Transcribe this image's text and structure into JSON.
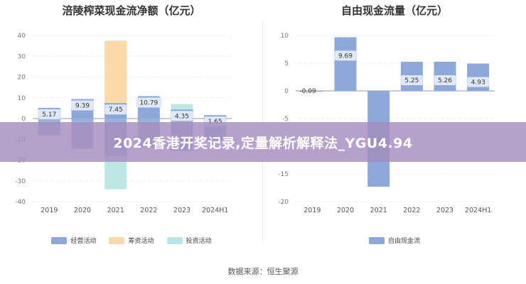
{
  "chart_data": [
    {
      "type": "bar",
      "title": "涪陵榨菜现金流净额（亿元）",
      "categories": [
        "2019",
        "2020",
        "2021",
        "2022",
        "2023",
        "2024H1"
      ],
      "ylim": [
        -40,
        40
      ],
      "yticks": [
        -40,
        -30,
        -20,
        -10,
        0,
        10,
        20,
        30,
        40
      ],
      "grid": true,
      "legend_position": "bottom",
      "series": [
        {
          "name": "经营活动",
          "color": "#8da8d8",
          "values": [
            5.17,
            9.39,
            7.45,
            10.79,
            4.35,
            1.65
          ],
          "labels": [
            "5.17",
            "9.39",
            "7.45",
            "10.79",
            "4.35",
            "1.65"
          ]
        },
        {
          "name": "筹资活动",
          "color": "#fcd9a8",
          "values": [
            -1.5,
            -1.2,
            37.5,
            -1.5,
            -2.0,
            0.3
          ]
        },
        {
          "name": "投资活动",
          "color": "#b8e6e6",
          "values": [
            -1.0,
            -1.0,
            -34.0,
            -1.0,
            7.0,
            -0.5
          ]
        }
      ],
      "neg_operating_overlay": [
        -8.0,
        -14.5,
        -18.0,
        -14.0,
        -15.5,
        -10.5
      ]
    },
    {
      "type": "bar",
      "title": "自由现金流量（亿元）",
      "categories": [
        "2019",
        "2020",
        "2021",
        "2022",
        "2023",
        "2024H1"
      ],
      "ylim": [
        -20,
        10
      ],
      "yticks": [
        -20,
        -15,
        -10,
        -5,
        0,
        5,
        10
      ],
      "grid": true,
      "legend_position": "bottom",
      "series": [
        {
          "name": "自由现金流",
          "color": "#8da8d8",
          "values": [
            -0.09,
            9.69,
            -17.3,
            5.25,
            5.26,
            4.93
          ],
          "labels": [
            "-0.09",
            "9.69",
            "",
            "5.25",
            "5.26",
            "4.93"
          ]
        }
      ]
    }
  ],
  "source": "数据来源：恒生聚源",
  "banner": "2024香港开奖记录,定量解析解释法_YGU4.94"
}
